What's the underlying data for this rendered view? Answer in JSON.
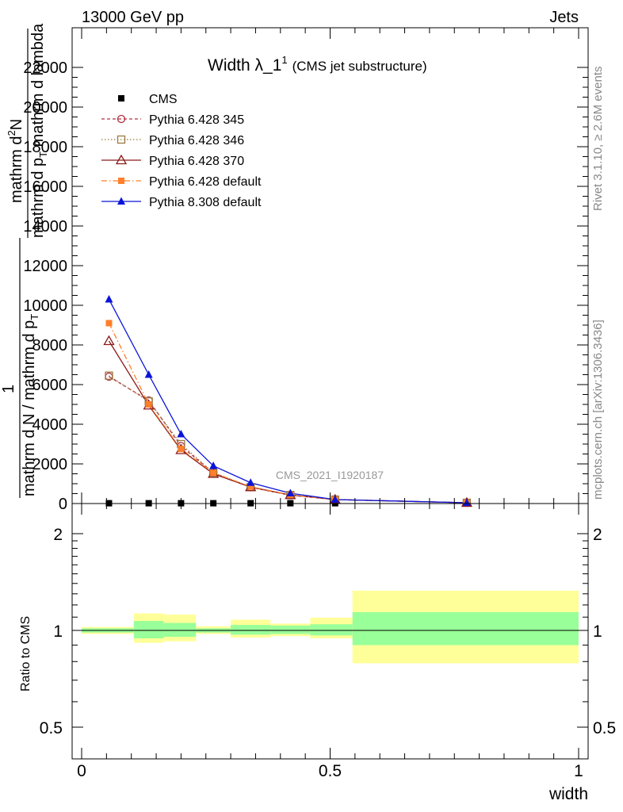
{
  "header": {
    "left": "13000 GeV pp",
    "right": "Jets"
  },
  "side": {
    "rivet": "Rivet 3.1.10, ≥ 2.6M events",
    "mcplots": "mcplots.cern.ch [arXiv:1306.3436]"
  },
  "watermark": "CMS_2021_I1920187",
  "colors": {
    "CMS": "#000000",
    "p345": "#b03040",
    "p346": "#9b7a3e",
    "p370": "#8b1a1a",
    "pdef": "#ff7f2a",
    "p8": "#0a14d8",
    "band_inner": "#99ff99",
    "band_outer": "#ffff99"
  },
  "chart_data": [
    {
      "type": "line",
      "title": "Width λ_1",
      "title_sup": "1",
      "subtitle": "(CMS jet substructure)",
      "ylabel_top": "mathrm d",
      "ylabel_top_sup": "2",
      "ylabel_top_n": "N",
      "ylabel_bottom_1": "mathrm d p",
      "ylabel_bottom_sub": "T",
      "ylabel_bottom_2": " mathrm d lambda",
      "ylabel_lower": "mathrm d N / mathrm d p",
      "ylabel_lower_sub": "T",
      "ylabel_one": "1",
      "xlim": [
        0,
        1
      ],
      "ylim": [
        0,
        22000
      ],
      "yticks": [
        0,
        2000,
        4000,
        6000,
        8000,
        10000,
        12000,
        14000,
        16000,
        18000,
        20000,
        22000
      ],
      "ytick_labels": [
        "0",
        "2000",
        "4000",
        "6000",
        "8000",
        "10000",
        "12000",
        "14000",
        "16000",
        "18000",
        "20000",
        "22000"
      ],
      "legend_position": "top-left",
      "x": [
        0.055,
        0.135,
        0.2,
        0.265,
        0.34,
        0.42,
        0.51,
        0.775
      ],
      "series": [
        {
          "name": "CMS",
          "marker": "square-filled",
          "values": [
            15,
            15,
            15,
            15,
            15,
            15,
            15,
            15
          ]
        },
        {
          "name": "Pythia 6.428 345",
          "marker": "circle-open",
          "dash": "4,3",
          "values": [
            6400,
            5200,
            2900,
            1550,
            820,
            420,
            200,
            40
          ]
        },
        {
          "name": "Pythia 6.428 346",
          "marker": "square-open",
          "dash": "1.5,2.5",
          "values": [
            6450,
            5150,
            3000,
            1550,
            830,
            430,
            200,
            40
          ]
        },
        {
          "name": "Pythia 6.428 370",
          "marker": "triangle-open",
          "dash": "",
          "values": [
            8200,
            4950,
            2700,
            1500,
            830,
            430,
            200,
            40
          ]
        },
        {
          "name": "Pythia 6.428 default",
          "marker": "square-filled-small",
          "dash": "7,3,1.5,3",
          "values": [
            9100,
            5000,
            2750,
            1550,
            850,
            440,
            200,
            40
          ]
        },
        {
          "name": "Pythia 8.308 default",
          "marker": "triangle-filled",
          "dash": "",
          "values": [
            10300,
            6500,
            3500,
            1900,
            1050,
            520,
            200,
            40
          ]
        }
      ]
    },
    {
      "type": "area",
      "ylabel": "Ratio to CMS",
      "xlabel": "width",
      "xlim": [
        0,
        1
      ],
      "ylim": [
        0.4,
        2.3
      ],
      "log_y": true,
      "yticks": [
        0.5,
        1,
        2
      ],
      "ytick_labels": [
        "0.5",
        "1",
        "2"
      ],
      "xticks": [
        0,
        0.5,
        1
      ],
      "xtick_labels": [
        "0",
        "0.5",
        "1"
      ],
      "bins": [
        {
          "lo": 0.0,
          "hi": 0.105,
          "inner": [
            0.985,
            1.015
          ],
          "outer": [
            0.975,
            1.025
          ]
        },
        {
          "lo": 0.105,
          "hi": 0.165,
          "inner": [
            0.945,
            1.07
          ],
          "outer": [
            0.915,
            1.13
          ]
        },
        {
          "lo": 0.165,
          "hi": 0.23,
          "inner": [
            0.955,
            1.055
          ],
          "outer": [
            0.925,
            1.12
          ]
        },
        {
          "lo": 0.23,
          "hi": 0.3,
          "inner": [
            0.985,
            1.015
          ],
          "outer": [
            0.975,
            1.03
          ]
        },
        {
          "lo": 0.3,
          "hi": 0.38,
          "inner": [
            0.97,
            1.04
          ],
          "outer": [
            0.95,
            1.08
          ]
        },
        {
          "lo": 0.38,
          "hi": 0.46,
          "inner": [
            0.975,
            1.035
          ],
          "outer": [
            0.96,
            1.05
          ]
        },
        {
          "lo": 0.46,
          "hi": 0.545,
          "inner": [
            0.965,
            1.045
          ],
          "outer": [
            0.945,
            1.095
          ]
        },
        {
          "lo": 0.545,
          "hi": 1.0,
          "inner": [
            0.9,
            1.14
          ],
          "outer": [
            0.79,
            1.33
          ]
        }
      ]
    }
  ]
}
